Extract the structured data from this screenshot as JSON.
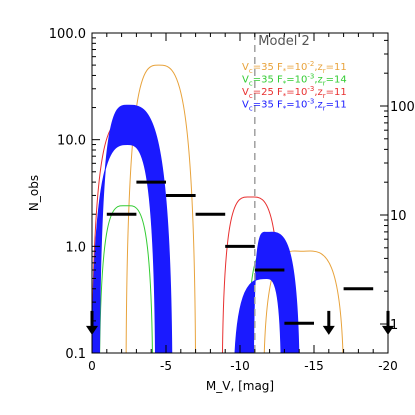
{
  "chart_data": {
    "type": "line",
    "title": "Model 2",
    "xlabel": "M_V, [mag]",
    "ylabel": "N_obs",
    "x_axis": {
      "range": [
        0,
        -20
      ],
      "ticks": [
        0,
        -5,
        -10,
        -15,
        -20
      ],
      "tick_labels": [
        "0",
        "-5",
        "-10",
        "-15",
        "-20"
      ],
      "reversed": true
    },
    "y_axis": {
      "scale": "log",
      "range": [
        0.1,
        100
      ],
      "ticks": [
        0.1,
        1,
        10,
        100
      ],
      "tick_labels": [
        "0.1",
        "1.0",
        "10.0",
        "100.0"
      ]
    },
    "right_axis": {
      "tick_labels": [
        "1",
        "10",
        "100"
      ]
    },
    "grid": false,
    "legend_position": "top-right",
    "reference_line": {
      "x": -11,
      "style": "dashed",
      "color": "#a0a0a0"
    },
    "legend": [
      {
        "line1": "V",
        "sub1": "c",
        "line2": "=35 F",
        "sub2": "*",
        "line3": "=10",
        "sup": "-2",
        "line4": ",z",
        "sub3": "r",
        "line5": "=11",
        "color": "#e8a33c"
      },
      {
        "line1": "V",
        "sub1": "c",
        "line2": "=35 F",
        "sub2": "*",
        "line3": "=10",
        "sup": "-3",
        "line4": ",z",
        "sub3": "r",
        "line5": "=14",
        "color": "#33cc33"
      },
      {
        "line1": "V",
        "sub1": "c",
        "line2": "=25 F",
        "sub2": "*",
        "line3": "=10",
        "sup": "-3",
        "line4": ",z",
        "sub3": "r",
        "line5": "=11",
        "color": "#e83030"
      },
      {
        "line1": "V",
        "sub1": "c",
        "line2": "=35 F",
        "sub2": "*",
        "line3": "=10",
        "sup": "-3",
        "line4": ",z",
        "sub3": "r",
        "line5": "=11",
        "color": "#1a1aff"
      }
    ],
    "series": [
      {
        "color": "#e8a33c",
        "kind": "line",
        "segments": [
          {
            "peak_x": -4.5,
            "peak_y": 50,
            "left_x": -2.3,
            "right_x": -7.0
          },
          {
            "peak_x": -14.2,
            "peak_y": 0.9,
            "left_x": -11.6,
            "right_x": -17.0
          }
        ]
      },
      {
        "color": "#33cc33",
        "kind": "line",
        "segments": [
          {
            "peak_x": -2.3,
            "peak_y": 2.4,
            "left_x": -0.5,
            "right_x": -4.1
          },
          {
            "peak_x": -12.0,
            "peak_y": 0.9,
            "left_x": -10.5,
            "right_x": -13.5
          }
        ]
      },
      {
        "color": "#e83030",
        "kind": "line",
        "segments": [
          {
            "peak_x": -2.3,
            "peak_y": 15,
            "left_x": 0.0,
            "right_x": -5.0
          },
          {
            "peak_x": -10.7,
            "peak_y": 2.9,
            "left_x": -8.8,
            "right_x": -12.8
          }
        ]
      },
      {
        "color": "#1a1aff",
        "kind": "band",
        "segments": [
          {
            "peak_x": -2.4,
            "peak_lo": 9.0,
            "peak_hi": 21,
            "left_lo": -0.5,
            "left_hi": 0.0,
            "right_lo": -4.3,
            "right_hi": -5.4
          },
          {
            "peak_x": -11.8,
            "peak_lo": 0.5,
            "peak_hi": 1.35,
            "left_lo": -10.9,
            "left_hi": -9.6,
            "right_lo": -12.8,
            "right_hi": -14.0
          }
        ]
      }
    ],
    "observed_bins": [
      {
        "x0": -1.0,
        "x1": -3.0,
        "y": 2.0
      },
      {
        "x0": -3.0,
        "x1": -5.0,
        "y": 4.0
      },
      {
        "x0": -5.0,
        "x1": -7.0,
        "y": 3.0
      },
      {
        "x0": -7.0,
        "x1": -9.0,
        "y": 2.0
      },
      {
        "x0": -9.0,
        "x1": -11.0,
        "y": 1.0
      },
      {
        "x0": -11.0,
        "x1": -13.0,
        "y": 0.6
      },
      {
        "x0": -13.0,
        "x1": -15.0,
        "y": 0.19
      },
      {
        "x0": -17.0,
        "x1": -19.0,
        "y": 0.4
      }
    ],
    "upper_limits": [
      {
        "x": 0.0,
        "y": 0.2
      },
      {
        "x": -16.0,
        "y": 0.2
      },
      {
        "x": -20.0,
        "y": 0.2
      }
    ]
  }
}
